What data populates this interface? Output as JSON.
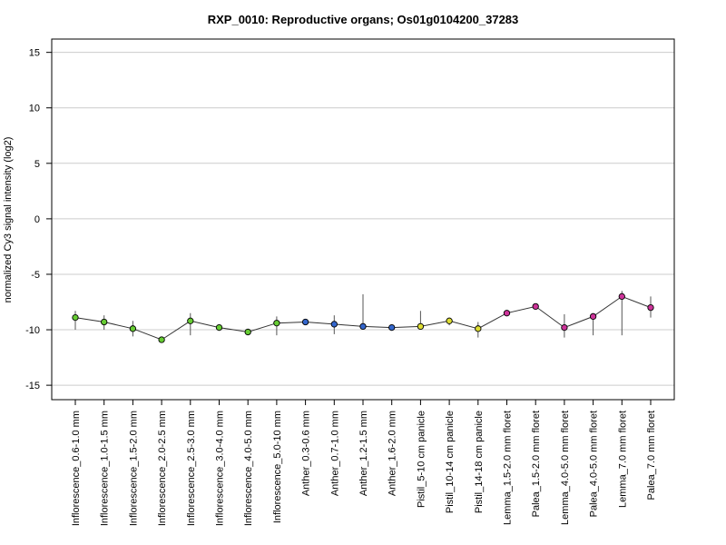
{
  "chart_data": {
    "type": "line",
    "title": "RXP_0010: Reproductive organs; Os01g0104200_37283",
    "xlabel": "",
    "ylabel": "normalized Cy3 signal intensity (log2)",
    "ylim": [
      -16.3,
      16.2
    ],
    "yticks": [
      15,
      10,
      5,
      0,
      -5,
      -10,
      -15
    ],
    "grid": true,
    "categories": [
      "Inflorescence_0.6-1.0 mm",
      "Inflorescence_1.0-1.5 mm",
      "Inflorescence_1.5-2.0 mm",
      "Inflorescence_2.0-2.5 mm",
      "Inflorescence_2.5-3.0 mm",
      "Inflorescence_3.0-4.0 mm",
      "Inflorescence_4.0-5.0 mm",
      "Inflorescence_5.0-10 mm",
      "Anther_0.3-0.6 mm",
      "Anther_0.7-1.0 mm",
      "Anther_1.2-1.5 mm",
      "Anther_1.6-2.0 mm",
      "Pistil_5-10 cm panicle",
      "Pistil_10-14 cm panicle",
      "Pistil_14-18 cm panicle",
      "Lemma_1.5-2.0 mm floret",
      "Palea_1.5-2.0 mm floret",
      "Lemma_4.0-5.0 mm floret",
      "Palea_4.0-5.0 mm floret",
      "Lemma_7.0 mm floret",
      "Palea_7.0 mm floret"
    ],
    "values": [
      -8.9,
      -9.3,
      -9.9,
      -10.9,
      -9.2,
      -9.8,
      -10.2,
      -9.4,
      -9.3,
      -9.5,
      -9.7,
      -9.8,
      -9.7,
      -9.2,
      -9.9,
      -8.5,
      -7.9,
      -9.8,
      -8.8,
      -7.0,
      -8.0
    ],
    "error_low": [
      -10.0,
      -10.0,
      -10.6,
      -10.9,
      -10.5,
      -9.8,
      -10.5,
      -10.5,
      -9.4,
      -10.4,
      -9.8,
      -9.8,
      -9.8,
      -9.6,
      -10.7,
      -8.6,
      -8.0,
      -10.7,
      -10.5,
      -10.5,
      -8.9
    ],
    "error_high": [
      -8.3,
      -8.7,
      -9.2,
      -10.7,
      -8.5,
      -9.7,
      -9.9,
      -8.8,
      -9.2,
      -8.7,
      -6.8,
      -9.7,
      -8.3,
      -8.9,
      -9.3,
      -8.4,
      -7.8,
      -8.6,
      -8.5,
      -6.5,
      -7.0
    ],
    "point_colors": [
      "#66cc33",
      "#66cc33",
      "#66cc33",
      "#66cc33",
      "#66cc33",
      "#66cc33",
      "#66cc33",
      "#66cc33",
      "#3366cc",
      "#3366cc",
      "#3366cc",
      "#3366cc",
      "#dddd33",
      "#dddd33",
      "#dddd33",
      "#cc3399",
      "#cc3399",
      "#cc3399",
      "#cc3399",
      "#cc3399",
      "#cc3399"
    ]
  }
}
